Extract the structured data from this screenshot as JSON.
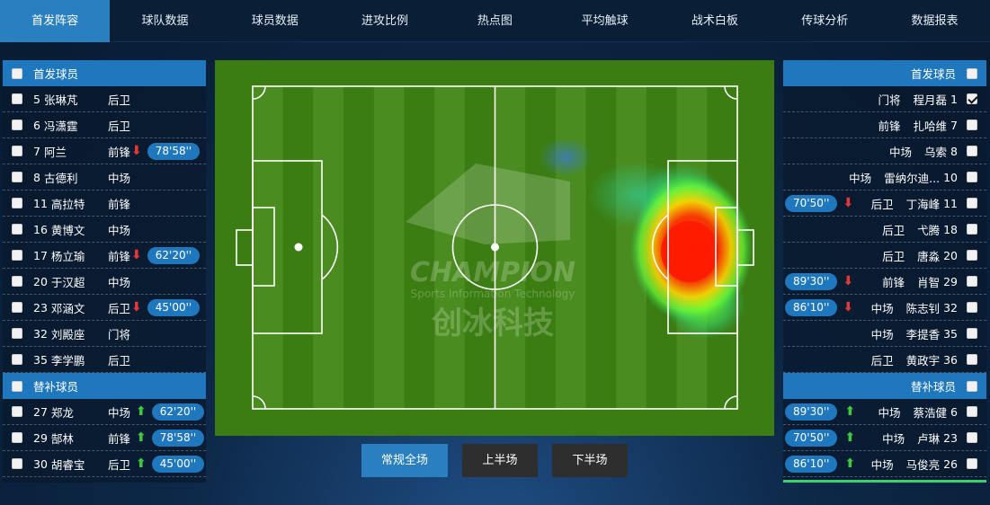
{
  "nav": {
    "tabs": [
      "首发阵容",
      "球队数据",
      "球员数据",
      "进攻比例",
      "热点图",
      "平均触球",
      "战术白板",
      "传球分析",
      "数据报表"
    ],
    "active_index": 0
  },
  "left_panel": {
    "starters_title": "首发球员",
    "starters": [
      {
        "num": "5",
        "name": "张琳芃",
        "pos": "后卫",
        "sub": "",
        "time": ""
      },
      {
        "num": "6",
        "name": "冯潇霆",
        "pos": "后卫",
        "sub": "",
        "time": ""
      },
      {
        "num": "7",
        "name": "阿兰",
        "pos": "前锋",
        "sub": "out",
        "time": "78'58''"
      },
      {
        "num": "8",
        "name": "古德利",
        "pos": "中场",
        "sub": "",
        "time": ""
      },
      {
        "num": "11",
        "name": "高拉特",
        "pos": "前锋",
        "sub": "",
        "time": ""
      },
      {
        "num": "16",
        "name": "黄博文",
        "pos": "中场",
        "sub": "",
        "time": ""
      },
      {
        "num": "17",
        "name": "杨立瑜",
        "pos": "前锋",
        "sub": "out",
        "time": "62'20''"
      },
      {
        "num": "20",
        "name": "于汉超",
        "pos": "中场",
        "sub": "",
        "time": ""
      },
      {
        "num": "23",
        "name": "邓涵文",
        "pos": "后卫",
        "sub": "out",
        "time": "45'00''"
      },
      {
        "num": "32",
        "name": "刘殿座",
        "pos": "门将",
        "sub": "",
        "time": ""
      },
      {
        "num": "35",
        "name": "李学鹏",
        "pos": "后卫",
        "sub": "",
        "time": ""
      }
    ],
    "subs_title": "替补球员",
    "subs": [
      {
        "num": "27",
        "name": "郑龙",
        "pos": "中场",
        "sub": "in",
        "time": "62'20''"
      },
      {
        "num": "29",
        "name": "郜林",
        "pos": "前锋",
        "sub": "in",
        "time": "78'58''"
      },
      {
        "num": "30",
        "name": "胡睿宝",
        "pos": "后卫",
        "sub": "in",
        "time": "45'00''"
      }
    ]
  },
  "right_panel": {
    "starters_title": "首发球员",
    "starters": [
      {
        "num": "1",
        "name": "程月磊",
        "pos": "门将",
        "sub": "",
        "time": "",
        "checked": true
      },
      {
        "num": "7",
        "name": "扎哈维",
        "pos": "前锋",
        "sub": "",
        "time": "",
        "checked": false
      },
      {
        "num": "8",
        "name": "乌索",
        "pos": "中场",
        "sub": "",
        "time": "",
        "checked": false
      },
      {
        "num": "10",
        "name": "雷纳尔迪...",
        "pos": "中场",
        "sub": "",
        "time": "",
        "checked": false
      },
      {
        "num": "11",
        "name": "丁海峰",
        "pos": "后卫",
        "sub": "out",
        "time": "70'50''",
        "checked": false
      },
      {
        "num": "18",
        "name": "弋腾",
        "pos": "后卫",
        "sub": "",
        "time": "",
        "checked": false
      },
      {
        "num": "20",
        "name": "唐淼",
        "pos": "后卫",
        "sub": "",
        "time": "",
        "checked": false
      },
      {
        "num": "29",
        "name": "肖智",
        "pos": "前锋",
        "sub": "out",
        "time": "89'30''",
        "checked": false
      },
      {
        "num": "32",
        "name": "陈志钊",
        "pos": "中场",
        "sub": "out",
        "time": "86'10''",
        "checked": false
      },
      {
        "num": "35",
        "name": "李提香",
        "pos": "中场",
        "sub": "",
        "time": "",
        "checked": false
      },
      {
        "num": "36",
        "name": "黄政宇",
        "pos": "后卫",
        "sub": "",
        "time": "",
        "checked": false
      }
    ],
    "subs_title": "替补球员",
    "subs": [
      {
        "num": "6",
        "name": "蔡浩健",
        "pos": "中场",
        "sub": "in",
        "time": "89'30''"
      },
      {
        "num": "23",
        "name": "卢琳",
        "pos": "中场",
        "sub": "in",
        "time": "70'50''"
      },
      {
        "num": "26",
        "name": "马俊亮",
        "pos": "中场",
        "sub": "in",
        "time": "86'10''"
      }
    ]
  },
  "watermark": {
    "brand": "CHAMPION",
    "tagline": "Sports Information Technology",
    "cn": "创冰科技"
  },
  "buttons": {
    "full": "常规全场",
    "first_half": "上半场",
    "second_half": "下半场"
  },
  "colors": {
    "accent": "#2a7fc1",
    "pitch_dark": "#3b7d12",
    "pitch_light": "#4a8c1f",
    "arrow_out": "#e53935",
    "arrow_in": "#3ec93e"
  }
}
